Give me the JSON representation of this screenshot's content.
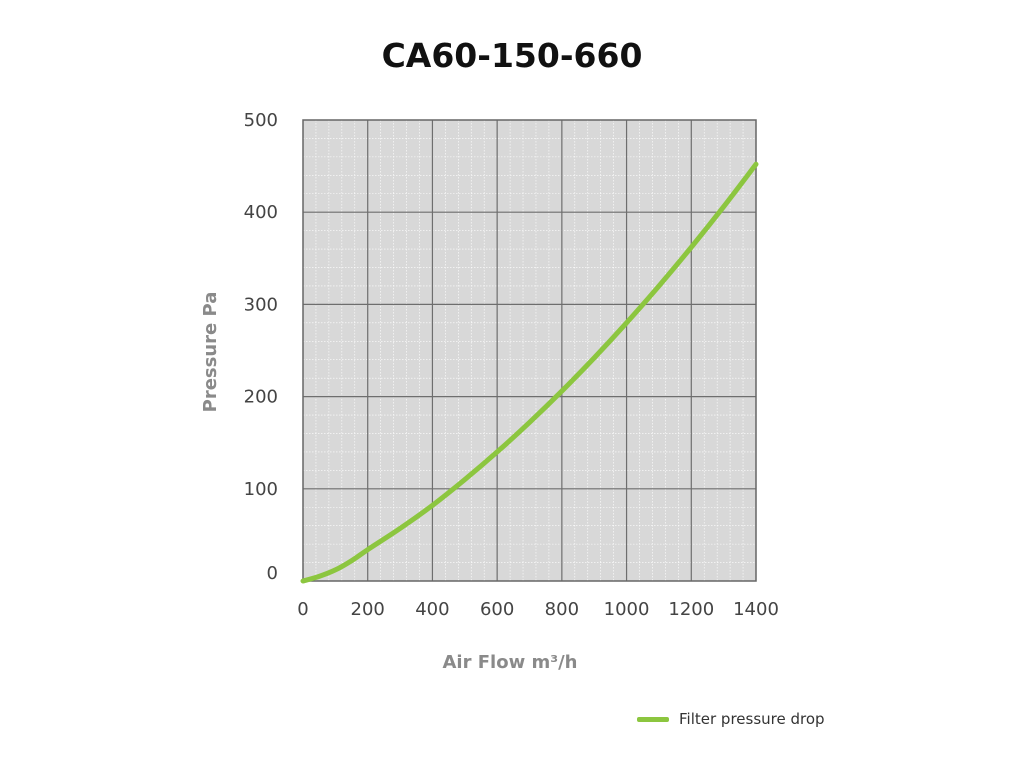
{
  "chart_data": {
    "type": "line",
    "title": "CA60-150-660",
    "xlabel": "Air Flow m³/h",
    "ylabel": "Pressure Pa",
    "xlim": [
      0,
      1400
    ],
    "ylim": [
      0,
      500
    ],
    "xticks": [
      "0",
      "200",
      "400",
      "600",
      "800",
      "1000",
      "1200",
      "1400"
    ],
    "yticks": [
      "0",
      "100",
      "200",
      "300",
      "400",
      "500"
    ],
    "grid": true,
    "legend_position": "bottom-right",
    "series": [
      {
        "name": "Filter pressure drop",
        "color": "#8cc63f",
        "x": [
          0,
          50,
          100,
          150,
          200,
          300,
          400,
          500,
          600,
          700,
          800,
          900,
          1000,
          1100,
          1200,
          1300,
          1400
        ],
        "y": [
          0,
          5,
          12,
          22,
          34,
          57,
          82,
          110,
          140,
          172,
          206,
          242,
          280,
          320,
          362,
          406,
          452
        ]
      }
    ]
  }
}
